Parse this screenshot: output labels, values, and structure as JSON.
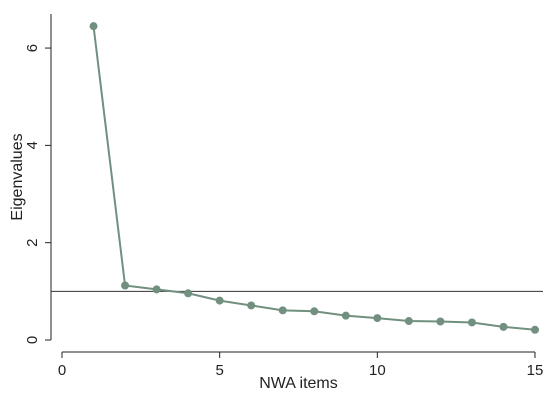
{
  "chart_data": {
    "type": "line",
    "title": "",
    "xlabel": "NWA items",
    "ylabel": "Eigenvalues",
    "xlim": [
      0,
      15
    ],
    "ylim": [
      0,
      6.7
    ],
    "xticks": [
      0,
      5,
      10,
      15
    ],
    "yticks": [
      0,
      2,
      4,
      6
    ],
    "grid": false,
    "legend": "none",
    "reference_line": {
      "y": 1
    },
    "series": [
      {
        "x": [
          1,
          2,
          3,
          4,
          5,
          6,
          7,
          8,
          9,
          10,
          11,
          12,
          13,
          14,
          15
        ],
        "values": [
          6.45,
          1.12,
          1.04,
          0.96,
          0.81,
          0.71,
          0.61,
          0.59,
          0.5,
          0.45,
          0.39,
          0.38,
          0.36,
          0.27,
          0.21
        ],
        "color": "#71907f"
      }
    ],
    "colors": {
      "series": "#71907f",
      "axis": "#222222",
      "reference_line": "#333333",
      "background": "#ffffff"
    }
  }
}
